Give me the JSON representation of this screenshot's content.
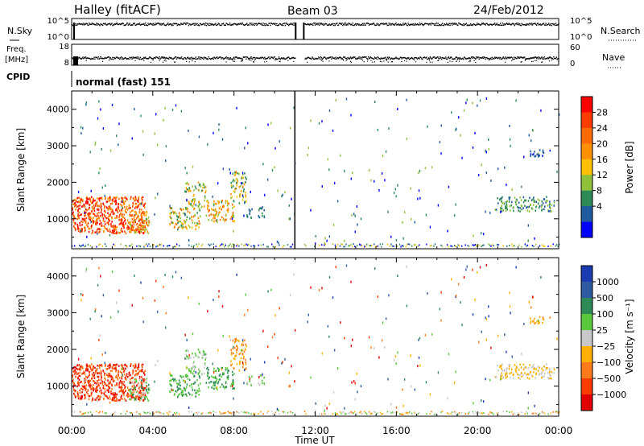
{
  "header": {
    "station": "Halley (fitACF)",
    "beam": "Beam 03",
    "date": "24/Feb/2012"
  },
  "top_panels": {
    "nsky_label": "N.Sky",
    "nsearch_label": "N.Search",
    "noise_ticks_left": [
      "10^5",
      "10^0"
    ],
    "noise_ticks_right": [
      "10^5",
      "10^0"
    ],
    "freq_label": "Freq.",
    "freq_unit": "[MHz]",
    "freq_ticks": [
      "18",
      "8"
    ],
    "nave_label": "Nave",
    "nave_ticks": [
      "60",
      "0"
    ],
    "cpid_label": "CPID",
    "cpid_value": "normal (fast) 151"
  },
  "chart_data": [
    {
      "type": "heatmap",
      "name": "power",
      "ylabel": "Slant Range [km]",
      "yticks": [
        1000,
        2000,
        3000,
        4000
      ],
      "ylim": [
        180,
        4500
      ],
      "xlim": [
        0,
        24
      ],
      "colorbar": {
        "label": "Power [dB]",
        "ticks": [
          "28",
          "24",
          "20",
          "16",
          "12",
          "8",
          "4"
        ],
        "colors": [
          "#ff0000",
          "#ff3c00",
          "#ff6a00",
          "#ff9000",
          "#ffc000",
          "#8fc23a",
          "#2e8b57",
          "#1f5a9f",
          "#0000ff"
        ]
      }
    },
    {
      "type": "heatmap",
      "name": "velocity",
      "ylabel": "Slant Range [km]",
      "yticks": [
        1000,
        2000,
        3000,
        4000
      ],
      "ylim": [
        180,
        4500
      ],
      "xlim": [
        0,
        24
      ],
      "colorbar": {
        "label": "Velocity [m s⁻¹]",
        "ticks": [
          "1000",
          "500",
          "100",
          "25",
          "−25",
          "−100",
          "−500",
          "−1000"
        ],
        "colors": [
          "#1a3cb0",
          "#2f5aa0",
          "#2e8b57",
          "#5ac83c",
          "#c8c8c8",
          "#ffb000",
          "#ff7a1a",
          "#ff3c00",
          "#e00000"
        ]
      }
    }
  ],
  "xaxis": {
    "ticks": [
      "00:00",
      "04:00",
      "08:00",
      "12:00",
      "16:00",
      "20:00",
      "00:00"
    ],
    "label": "Time UT"
  }
}
